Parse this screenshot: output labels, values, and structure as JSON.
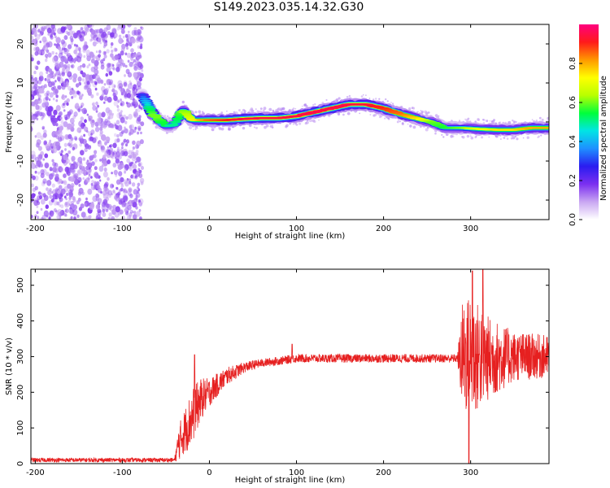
{
  "title": "S149.2023.035.14.32.G30",
  "chart_data": [
    {
      "type": "heatmap",
      "xlabel": "Height of straight line (km)",
      "ylabel": "Frequency (Hz)",
      "xlim": [
        -205,
        390
      ],
      "ylim": [
        -25,
        25
      ],
      "xticks": [
        -200,
        -100,
        0,
        100,
        200,
        300
      ],
      "yticks": [
        -20,
        -10,
        0,
        10,
        20
      ],
      "colorbar": {
        "label": "Normalized spectral amplitude",
        "range": [
          0,
          1
        ],
        "ticks": [
          "0.0",
          "0.2",
          "0.4",
          "0.6",
          "0.8"
        ],
        "colors": [
          "#ffffff",
          "#c9a6f2",
          "#7b2ff0",
          "#2a1cf0",
          "#1e90ff",
          "#00e5e5",
          "#00ff3c",
          "#b8ff00",
          "#ffff00",
          "#ff9900",
          "#ff1a1a",
          "#ff007f"
        ]
      },
      "noise_region": {
        "x_range": [
          -205,
          -77
        ],
        "amplitude_range": [
          0.0,
          0.1
        ]
      },
      "ridge": {
        "x": [
          -77,
          -70,
          -65,
          -60,
          -55,
          -50,
          -45,
          -40,
          -30,
          -20,
          0,
          20,
          40,
          60,
          80,
          100,
          120,
          140,
          160,
          180,
          200,
          220,
          240,
          255,
          270,
          290,
          310,
          330,
          350,
          370,
          390
        ],
        "freq": [
          7,
          4,
          2,
          1,
          0,
          -1,
          -1,
          -0.5,
          3,
          0.5,
          0.5,
          0.5,
          0.8,
          1,
          1,
          1.5,
          2.5,
          3.5,
          4.5,
          4.5,
          3.5,
          2,
          0.8,
          0,
          -1.5,
          -1.5,
          -1.8,
          -2,
          -2,
          -1.5,
          -1.5
        ],
        "amplitude": [
          0.3,
          0.5,
          0.6,
          0.6,
          0.55,
          0.55,
          0.5,
          0.5,
          0.6,
          0.7,
          0.85,
          0.9,
          0.95,
          0.95,
          0.95,
          0.95,
          0.95,
          0.95,
          0.95,
          0.95,
          0.9,
          0.85,
          0.75,
          0.6,
          0.55,
          0.6,
          0.7,
          0.75,
          0.75,
          0.8,
          0.8
        ]
      }
    },
    {
      "type": "line",
      "xlabel": "Height of straight line (km)",
      "ylabel": "SNR (10 * v/v)",
      "xlim": [
        -205,
        390
      ],
      "ylim": [
        0,
        545
      ],
      "xticks": [
        -200,
        -100,
        0,
        100,
        200,
        300
      ],
      "yticks": [
        0,
        100,
        200,
        300,
        400,
        500
      ],
      "color": "#e62020",
      "envelope": {
        "x": [
          -205,
          -40,
          -35,
          -20,
          -10,
          0,
          20,
          40,
          60,
          80,
          100,
          150,
          200,
          250,
          285,
          290,
          300,
          320,
          350,
          390
        ],
        "mean": [
          10,
          10,
          60,
          130,
          180,
          200,
          245,
          270,
          282,
          288,
          295,
          295,
          295,
          295,
          295,
          300,
          300,
          295,
          300,
          300
        ],
        "spread": [
          6,
          6,
          50,
          80,
          60,
          40,
          25,
          15,
          12,
          12,
          12,
          12,
          12,
          12,
          12,
          150,
          180,
          120,
          70,
          60
        ]
      },
      "peaks": [
        {
          "x": -17,
          "y": 305
        },
        {
          "x": 95,
          "y": 335
        },
        {
          "x": 302,
          "y": 540
        },
        {
          "x": 314,
          "y": 545
        },
        {
          "x": 298,
          "y": 0
        }
      ]
    }
  ]
}
